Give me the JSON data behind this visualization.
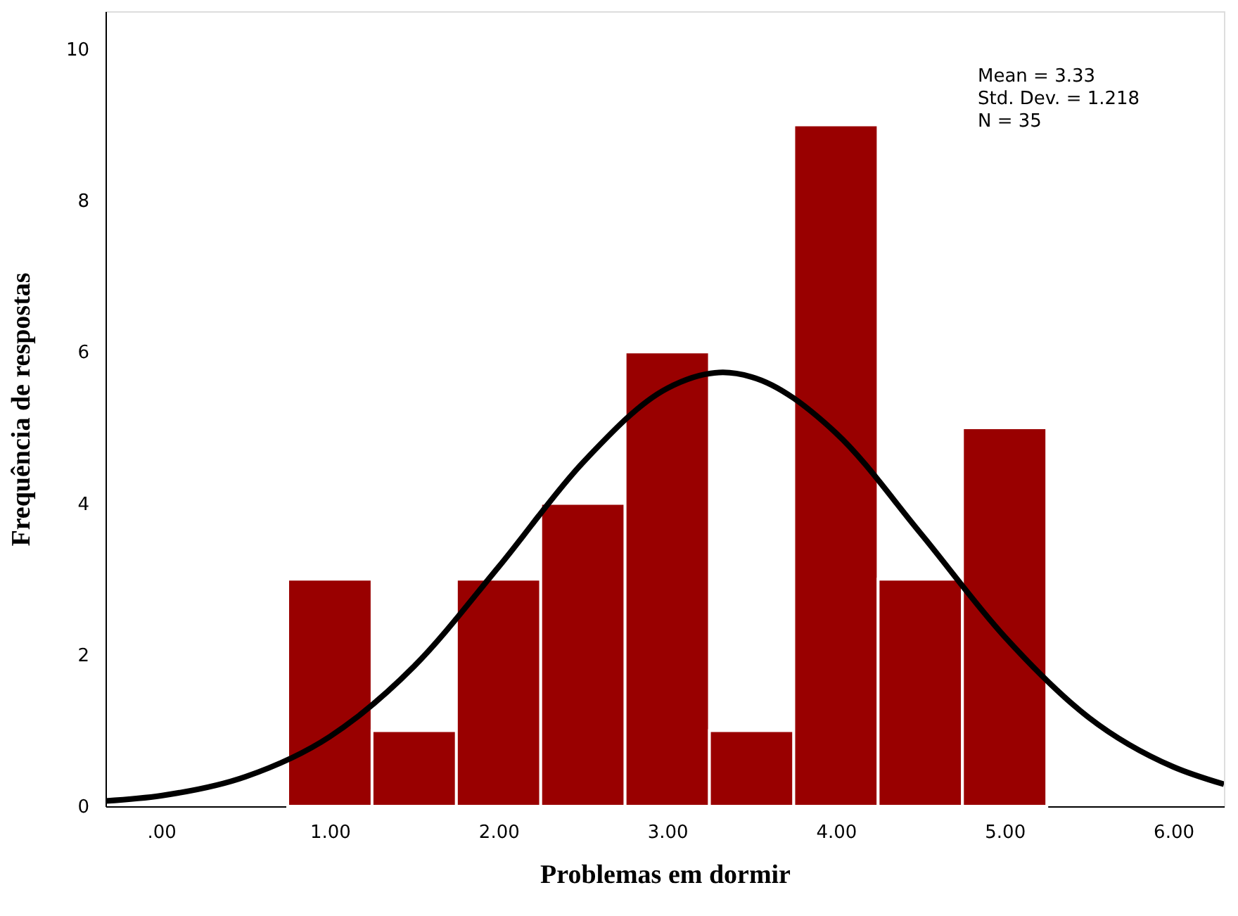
{
  "chart_data": {
    "type": "histogram",
    "xlabel": "Problemas em dormir",
    "ylabel": "Frequência de respostas",
    "bins": [
      0.75,
      1.25,
      1.75,
      2.25,
      2.75,
      3.25,
      3.75,
      4.25,
      4.75,
      5.25
    ],
    "values": [
      3,
      1,
      3,
      4,
      6,
      1,
      9,
      3,
      5
    ],
    "color": "#990000",
    "series": [
      {
        "type": "line",
        "color": "#000000",
        "x": [
          -0.33,
          0,
          0.5,
          1,
          1.5,
          2,
          2.5,
          3,
          3.33,
          3.5,
          4,
          4.5,
          5,
          5.5,
          6,
          6.3
        ],
        "values": [
          0.07,
          0.14,
          0.39,
          0.92,
          1.85,
          3.16,
          4.54,
          5.52,
          5.73,
          5.67,
          4.93,
          3.61,
          2.24,
          1.17,
          0.52,
          0.29
        ]
      }
    ],
    "xlim": [
      -0.33,
      6.3
    ],
    "xticks": [
      {
        "value": 0,
        "label": ".00"
      },
      {
        "value": 1,
        "label": "1.00"
      },
      {
        "value": 2,
        "label": "2.00"
      },
      {
        "value": 3,
        "label": "3.00"
      },
      {
        "value": 4,
        "label": "4.00"
      },
      {
        "value": 5,
        "label": "5.00"
      },
      {
        "value": 6,
        "label": "6.00"
      }
    ],
    "ylim": [
      0,
      10.5
    ],
    "yticks": [
      0,
      2,
      4,
      6,
      8,
      10
    ],
    "grid": false,
    "annotations": [
      "Mean = 3.33",
      "Std. Dev. = 1.218",
      "N = 35"
    ]
  }
}
